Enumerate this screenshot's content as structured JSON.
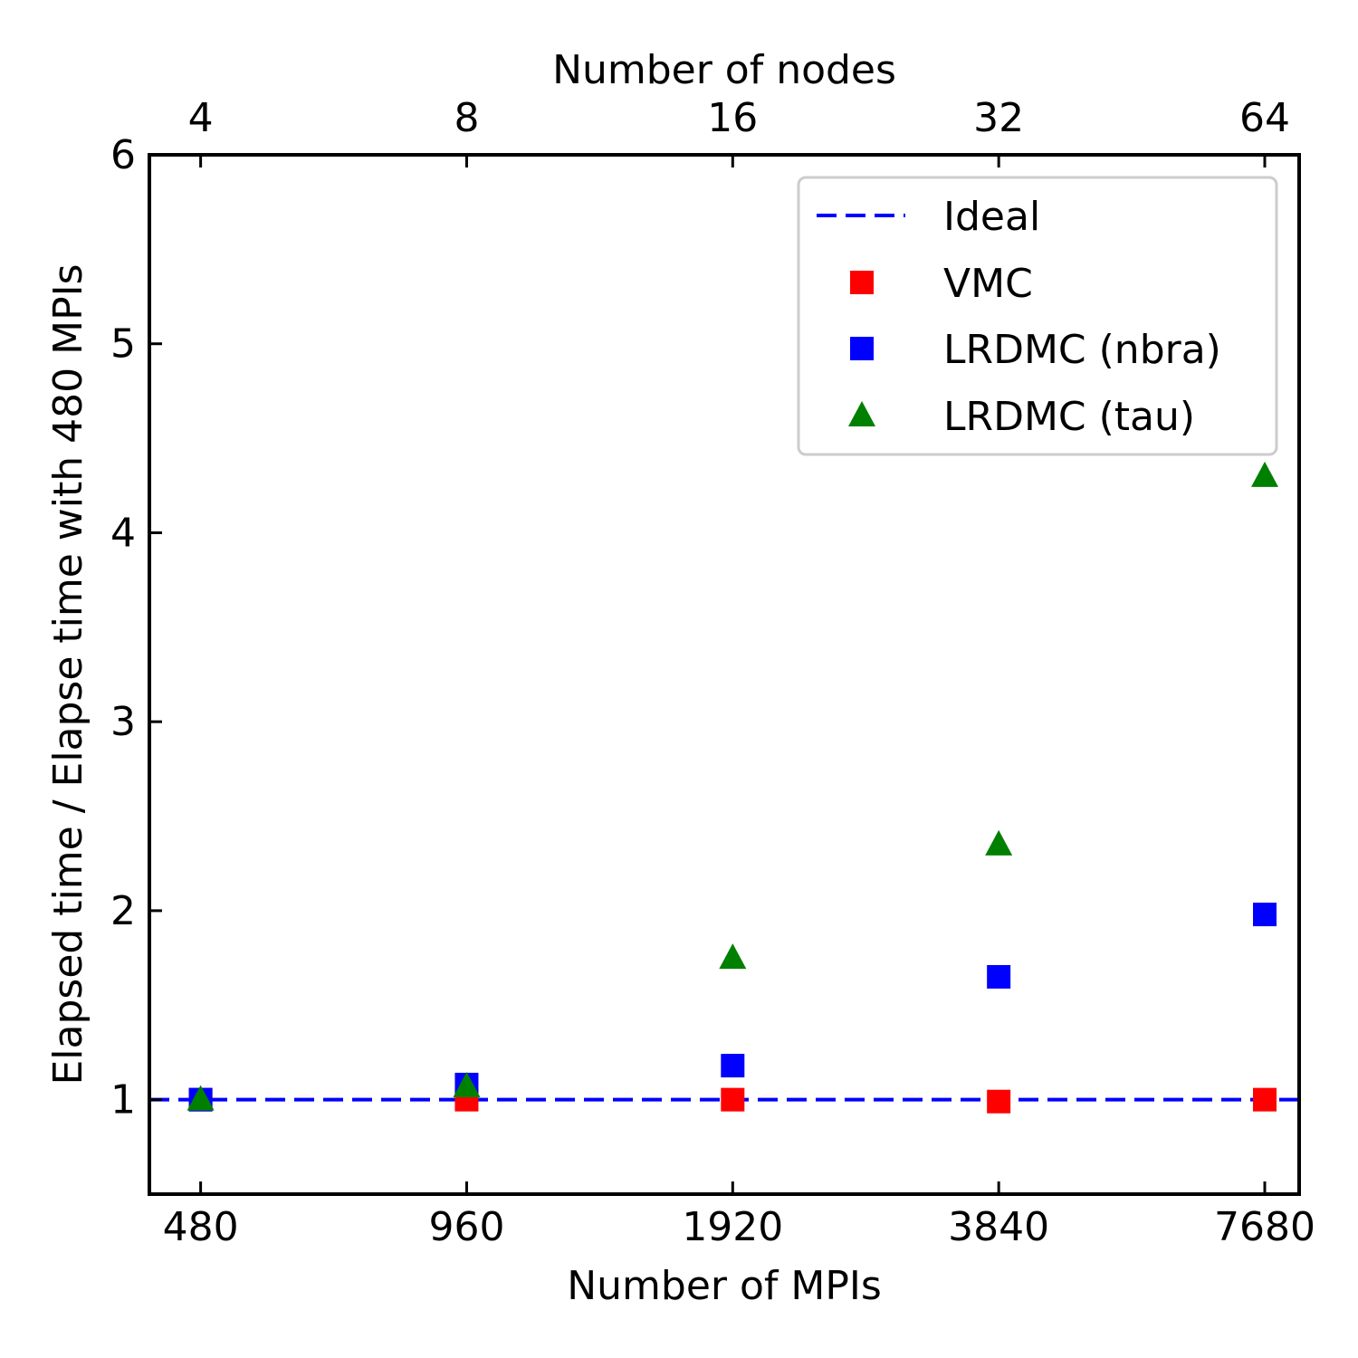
{
  "chart_data": {
    "type": "scatter",
    "xlabel": "Number of MPIs",
    "xlabel_top": "Number of nodes",
    "ylabel": "Elapsed time / Elapse time with 480 MPIs",
    "x_scale": "log2",
    "xlim": [
      420,
      8400
    ],
    "ylim": [
      0.5,
      6
    ],
    "x_ticks": [
      480,
      960,
      1920,
      3840,
      7680
    ],
    "x_tick_labels": [
      "480",
      "960",
      "1920",
      "3840",
      "7680"
    ],
    "top_tick_labels": [
      "4",
      "8",
      "16",
      "32",
      "64"
    ],
    "y_ticks": [
      1,
      2,
      3,
      4,
      5,
      6
    ],
    "y_tick_labels": [
      "1",
      "2",
      "3",
      "4",
      "5",
      "6"
    ],
    "grid": false,
    "legend_position": "top-right",
    "series": [
      {
        "name": "Ideal",
        "kind": "line",
        "style": "dashed",
        "color": "#0000ff",
        "x": [
          420,
          8400
        ],
        "y": [
          1,
          1
        ]
      },
      {
        "name": "VMC",
        "kind": "scatter",
        "marker": "square",
        "color": "#ff0000",
        "x": [
          480,
          960,
          1920,
          3840,
          7680
        ],
        "y": [
          1.0,
          1.0,
          1.0,
          0.99,
          1.0
        ]
      },
      {
        "name": "LRDMC (nbra)",
        "kind": "scatter",
        "marker": "square",
        "color": "#0000ff",
        "x": [
          480,
          960,
          1920,
          3840,
          7680
        ],
        "y": [
          1.0,
          1.08,
          1.18,
          1.65,
          1.98
        ]
      },
      {
        "name": "LRDMC (tau)",
        "kind": "scatter",
        "marker": "triangle",
        "color": "#008000",
        "x": [
          480,
          960,
          1920,
          3840,
          7680
        ],
        "y": [
          1.0,
          1.07,
          1.75,
          2.35,
          4.3
        ]
      }
    ]
  }
}
